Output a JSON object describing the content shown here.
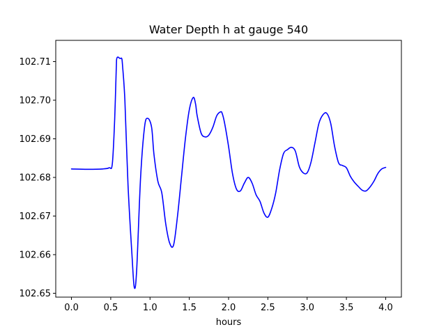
{
  "chart_data": {
    "type": "line",
    "title": "Water Depth h at gauge 540",
    "xlabel": "hours",
    "ylabel": "",
    "xlim": [
      -0.2,
      4.2
    ],
    "ylim": [
      102.649,
      102.7155
    ],
    "xticks": [
      0.0,
      0.5,
      1.0,
      1.5,
      2.0,
      2.5,
      3.0,
      3.5,
      4.0
    ],
    "xtick_labels": [
      "0.0",
      "0.5",
      "1.0",
      "1.5",
      "2.0",
      "2.5",
      "3.0",
      "3.5",
      "4.0"
    ],
    "yticks": [
      102.65,
      102.66,
      102.67,
      102.68,
      102.69,
      102.7,
      102.71
    ],
    "ytick_labels": [
      "102.65",
      "102.66",
      "102.67",
      "102.68",
      "102.69",
      "102.70",
      "102.71"
    ],
    "grid": false,
    "series": [
      {
        "name": "",
        "color": "#0000ff",
        "x": [
          0.0,
          0.2,
          0.4,
          0.48,
          0.52,
          0.55,
          0.57,
          0.58,
          0.62,
          0.64,
          0.65,
          0.68,
          0.72,
          0.77,
          0.8,
          0.83,
          0.88,
          0.93,
          0.97,
          1.02,
          1.05,
          1.1,
          1.15,
          1.2,
          1.25,
          1.3,
          1.35,
          1.4,
          1.45,
          1.5,
          1.55,
          1.58,
          1.6,
          1.65,
          1.7,
          1.75,
          1.8,
          1.85,
          1.9,
          1.92,
          1.95,
          2.0,
          2.05,
          2.1,
          2.15,
          2.2,
          2.25,
          2.3,
          2.35,
          2.4,
          2.45,
          2.5,
          2.55,
          2.6,
          2.65,
          2.7,
          2.75,
          2.8,
          2.85,
          2.9,
          2.95,
          3.0,
          3.05,
          3.1,
          3.15,
          3.2,
          3.25,
          3.3,
          3.35,
          3.4,
          3.45,
          3.5,
          3.55,
          3.6,
          3.65,
          3.7,
          3.75,
          3.8,
          3.85,
          3.9,
          3.95,
          4.0
        ],
        "y": [
          102.6822,
          102.6821,
          102.6822,
          102.6825,
          102.6835,
          102.695,
          102.708,
          102.711,
          102.7108,
          102.7108,
          102.709,
          102.7,
          102.678,
          102.66,
          102.6515,
          102.656,
          102.68,
          102.693,
          102.6953,
          102.693,
          102.686,
          102.679,
          102.676,
          102.668,
          102.663,
          102.6625,
          102.67,
          102.68,
          102.69,
          102.6975,
          102.7007,
          102.699,
          102.696,
          102.6915,
          102.6905,
          102.691,
          102.693,
          102.696,
          102.697,
          102.6965,
          102.694,
          102.688,
          102.681,
          102.677,
          102.6765,
          102.6785,
          102.68,
          102.6785,
          102.6755,
          102.6738,
          102.6708,
          102.6697,
          102.672,
          102.676,
          102.682,
          102.6862,
          102.6872,
          102.6878,
          102.6868,
          102.6828,
          102.6812,
          102.6812,
          102.684,
          102.689,
          102.694,
          102.6962,
          102.6966,
          102.694,
          102.688,
          102.6838,
          102.6831,
          102.6825,
          102.6803,
          102.6788,
          102.6777,
          102.6767,
          102.6765,
          102.6775,
          102.679,
          102.681,
          102.6822,
          102.6826
        ]
      }
    ]
  }
}
